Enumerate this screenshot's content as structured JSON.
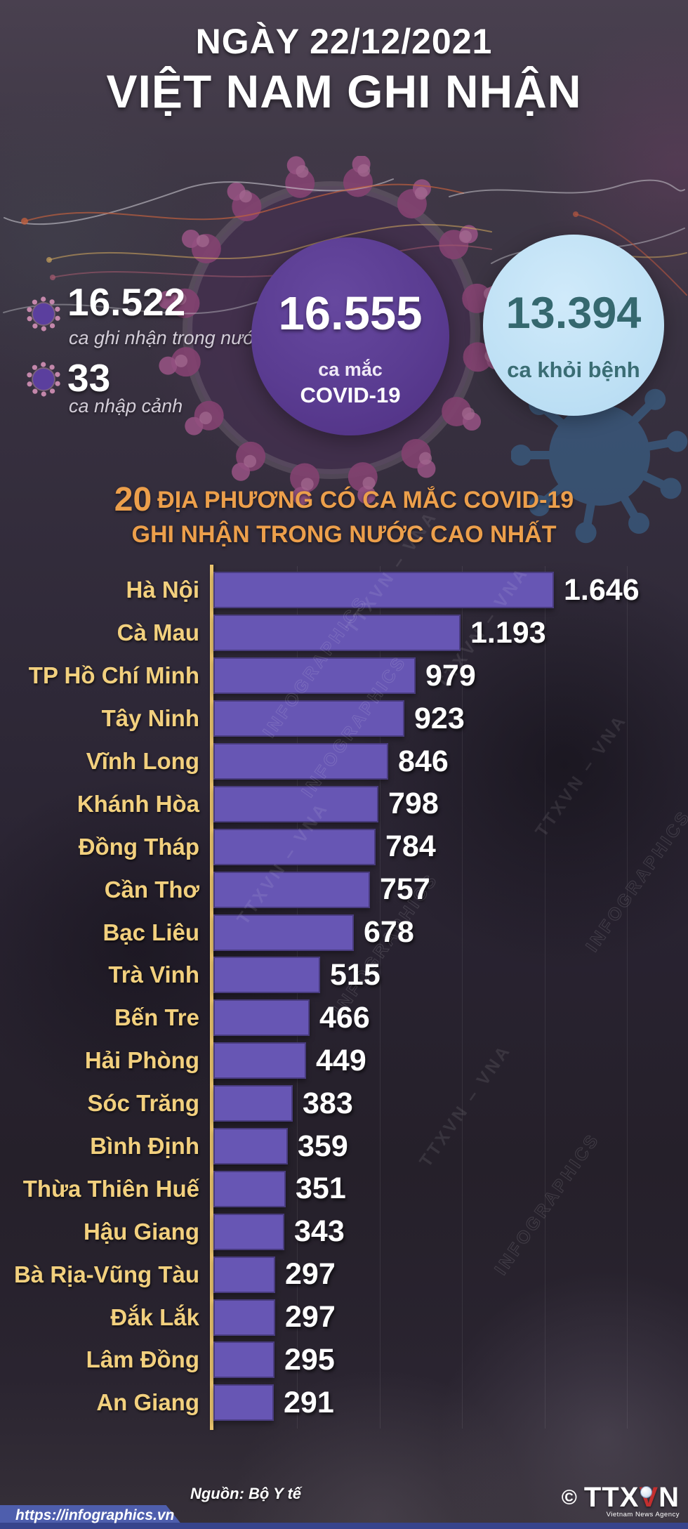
{
  "header": {
    "date": "NGÀY 22/12/2021",
    "title": "VIỆT NAM GHI NHẬN"
  },
  "stats": {
    "domestic": {
      "value": "16.522",
      "label": "ca ghi nhận trong nước"
    },
    "imported": {
      "value": "33",
      "label": "ca nhập cảnh"
    },
    "total": {
      "value": "16.555",
      "label_line1": "ca mắc",
      "label_line2": "COVID-19"
    },
    "recovered": {
      "value": "13.394",
      "label": "ca khỏi bệnh"
    }
  },
  "chart_title": {
    "prefix": "20",
    "line1": "ĐỊA PHƯƠNG CÓ CA MẮC COVID-19",
    "line2": "GHI NHẬN TRONG NƯỚC CAO NHẤT"
  },
  "chart_data": {
    "type": "bar",
    "orientation": "horizontal",
    "title": "20 địa phương có ca mắc COVID-19 ghi nhận trong nước cao nhất",
    "categories": [
      "Hà Nội",
      "Cà Mau",
      "TP Hồ Chí Minh",
      "Tây Ninh",
      "Vĩnh Long",
      "Khánh Hòa",
      "Đồng Tháp",
      "Cần Thơ",
      "Bạc Liêu",
      "Trà Vinh",
      "Bến Tre",
      "Hải Phòng",
      "Sóc Trăng",
      "Bình Định",
      "Thừa Thiên Huế",
      "Hậu Giang",
      "Bà Rịa-Vũng Tàu",
      "Đắk Lắk",
      "Lâm Đồng",
      "An Giang"
    ],
    "values": [
      1646,
      1193,
      979,
      923,
      846,
      798,
      784,
      757,
      678,
      515,
      466,
      449,
      383,
      359,
      351,
      343,
      297,
      297,
      295,
      291
    ],
    "value_labels": [
      "1.646",
      "1.193",
      "979",
      "923",
      "846",
      "798",
      "784",
      "757",
      "678",
      "515",
      "466",
      "449",
      "383",
      "359",
      "351",
      "343",
      "297",
      "297",
      "295",
      "291"
    ],
    "xlim": [
      0,
      1646
    ],
    "grid": true,
    "bar_color": "#6756b4",
    "category_label_color": "#f2d07e",
    "value_label_color": "#ffffff"
  },
  "watermarks": {
    "texts": [
      "TTXVN – VNA",
      "INFOGRAPHICS"
    ]
  },
  "footer": {
    "source": "Nguồn: Bộ Y tế",
    "url": "https://infographics.vn",
    "logo": {
      "copyright": "©",
      "brand_part1": "TTX",
      "brand_part_red": "V",
      "brand_part2": "N",
      "caption": "Vietnam News Agency"
    }
  },
  "colors": {
    "accent_gold": "#f2d07e",
    "accent_orange": "#ec9f4b",
    "bar_purple": "#6756b4",
    "axis_yellow": "#e9c36d",
    "circle_purple": "#5a3c91",
    "circle_blue_bg": "#bcdff4",
    "circle_blue_text": "#35686f",
    "ribbon_blue": "#4e5ead"
  }
}
